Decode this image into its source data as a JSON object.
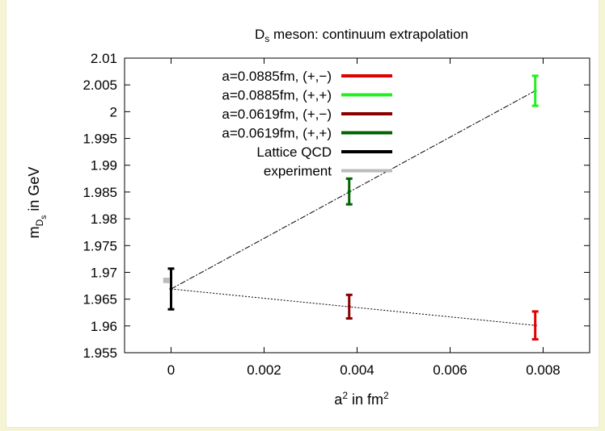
{
  "chart_data": {
    "type": "scatter",
    "title": "D_s meson: continuum extrapolation",
    "title_main": "D",
    "title_sub": "s",
    "title_rest": " meson: continuum extrapolation",
    "xlabel": "a^2 in fm^2",
    "xlabel_parts": {
      "a": "a",
      "sup": "2",
      "mid": " in fm",
      "sup2": "2"
    },
    "ylabel": "m_{D_s} in GeV",
    "ylabel_parts": {
      "m": "m",
      "sub": "D",
      "subsub": "s",
      "rest": " in GeV"
    },
    "xlim": [
      -0.001,
      0.009
    ],
    "ylim": [
      1.955,
      2.01
    ],
    "x_ticks": [
      "0",
      "0.002",
      "0.004",
      "0.006",
      "0.008"
    ],
    "x_tick_values": [
      0,
      0.002,
      0.004,
      0.006,
      0.008
    ],
    "y_ticks": [
      "1.955",
      "1.96",
      "1.965",
      "1.97",
      "1.975",
      "1.98",
      "1.985",
      "1.99",
      "1.995",
      "2",
      "2.005",
      "2.01"
    ],
    "y_tick_values": [
      1.955,
      1.96,
      1.965,
      1.97,
      1.975,
      1.98,
      1.985,
      1.99,
      1.995,
      2.0,
      2.005,
      2.01
    ],
    "grid": false,
    "legend_position": "top-left",
    "series": [
      {
        "name": "a=0.0885fm, (+,−)",
        "color": "#e00000",
        "points": [
          {
            "x": 0.00783,
            "y": 1.9601,
            "yerr": 0.0026
          }
        ]
      },
      {
        "name": "a=0.0885fm, (+,+)",
        "color": "#22ee22",
        "points": [
          {
            "x": 0.00783,
            "y": 2.0039,
            "yerr": 0.0028
          }
        ]
      },
      {
        "name": "a=0.0619fm, (+,−)",
        "color": "#8b0000",
        "points": [
          {
            "x": 0.00383,
            "y": 1.9636,
            "yerr": 0.0022
          }
        ]
      },
      {
        "name": "a=0.0619fm, (+,+)",
        "color": "#006400",
        "points": [
          {
            "x": 0.00383,
            "y": 1.9851,
            "yerr": 0.0024
          }
        ]
      },
      {
        "name": "Lattice QCD",
        "color": "#000000",
        "points": [
          {
            "x": 0.0,
            "y": 1.9669,
            "yerr": 0.0038
          }
        ]
      },
      {
        "name": "experiment",
        "color": "#bbbbbb",
        "points": [
          {
            "x": -0.0001,
            "y": 1.9685,
            "yerr": 0.0005
          }
        ]
      }
    ],
    "fit_lines": [
      {
        "from": [
          0.0,
          1.9669
        ],
        "to": [
          0.00783,
          2.0039
        ],
        "style": "dash-dot"
      },
      {
        "from": [
          0.0,
          1.9669
        ],
        "to": [
          0.00783,
          1.9601
        ],
        "style": "dotted"
      }
    ]
  }
}
